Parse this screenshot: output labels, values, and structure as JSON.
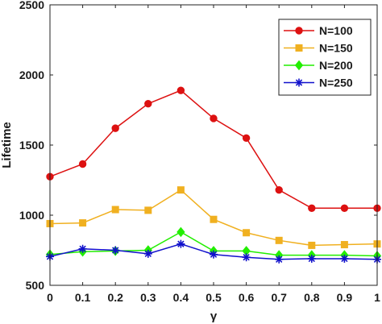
{
  "chart_data": {
    "type": "line",
    "x": [
      0,
      0.1,
      0.2,
      0.3,
      0.4,
      0.5,
      0.6,
      0.7,
      0.8,
      0.9,
      1
    ],
    "xticks": [
      "0",
      "0.1",
      "0.2",
      "0.3",
      "0.4",
      "0.5",
      "0.6",
      "0.7",
      "0.8",
      "0.9",
      "1"
    ],
    "yticks": [
      "500",
      "1000",
      "1500",
      "2000",
      "2500"
    ],
    "xlabel": "γ",
    "ylabel": "Lifetime",
    "xlim": [
      0,
      1
    ],
    "ylim": [
      500,
      2500
    ],
    "grid": false,
    "legend_position": "top-right",
    "series": [
      {
        "name": "N=100",
        "color": "#dd1111",
        "marker": "circle",
        "values": [
          1275,
          1365,
          1620,
          1795,
          1890,
          1690,
          1550,
          1180,
          1050,
          1050,
          1050
        ]
      },
      {
        "name": "N=150",
        "color": "#f0b020",
        "marker": "square",
        "values": [
          940,
          945,
          1040,
          1035,
          1180,
          970,
          875,
          820,
          785,
          790,
          795
        ]
      },
      {
        "name": "N=200",
        "color": "#22ee00",
        "marker": "diamond",
        "values": [
          720,
          740,
          745,
          750,
          880,
          745,
          745,
          715,
          715,
          715,
          710
        ]
      },
      {
        "name": "N=250",
        "color": "#1111cc",
        "marker": "star",
        "values": [
          705,
          760,
          750,
          725,
          795,
          720,
          700,
          685,
          690,
          690,
          685
        ]
      }
    ]
  }
}
